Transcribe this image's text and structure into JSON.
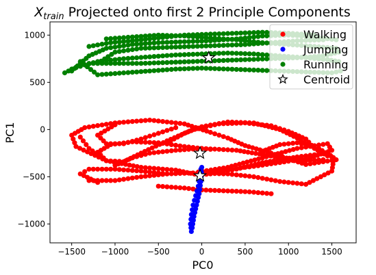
{
  "chart_data": {
    "type": "scatter",
    "title": {
      "base": "X",
      "subscript": "train",
      "rest": " Projected onto first 2 Principle Components"
    },
    "xlabel": "PC0",
    "ylabel": "PC1",
    "xlim": [
      -1750,
      1780
    ],
    "ylim": [
      -1200,
      1140
    ],
    "xticks": [
      -1500,
      -1000,
      -500,
      0,
      500,
      1000,
      1500
    ],
    "yticks": [
      -1000,
      -500,
      0,
      500,
      1000
    ],
    "legend_position": "upper right",
    "series": [
      {
        "name": "Walking",
        "color": "#ff0000",
        "curves": [
          [
            [
              -40,
              -480
            ],
            [
              -300,
              -430
            ],
            [
              -700,
              -400
            ],
            [
              -1100,
              -330
            ],
            [
              -1450,
              -180
            ],
            [
              -1500,
              -60
            ],
            [
              -1350,
              20
            ],
            [
              -1000,
              70
            ],
            [
              -600,
              100
            ],
            [
              -200,
              60
            ],
            [
              100,
              -30
            ],
            [
              300,
              -90
            ],
            [
              500,
              -170
            ],
            [
              800,
              -250
            ],
            [
              1200,
              -370
            ],
            [
              1550,
              -320
            ],
            [
              1450,
              -250
            ],
            [
              1100,
              -290
            ],
            [
              700,
              -350
            ],
            [
              400,
              -420
            ],
            [
              100,
              -470
            ],
            [
              -40,
              -480
            ]
          ],
          [
            [
              -40,
              -450
            ],
            [
              300,
              -400
            ],
            [
              700,
              -300
            ],
            [
              1100,
              -200
            ],
            [
              1450,
              -150
            ],
            [
              1500,
              -220
            ],
            [
              1250,
              -300
            ],
            [
              900,
              -350
            ],
            [
              600,
              -390
            ],
            [
              300,
              -420
            ],
            [
              100,
              -440
            ]
          ],
          [
            [
              -1400,
              -80
            ],
            [
              -1300,
              -200
            ],
            [
              -1100,
              -330
            ],
            [
              -900,
              -340
            ],
            [
              -700,
              -250
            ],
            [
              -400,
              -120
            ],
            [
              -100,
              0
            ],
            [
              200,
              60
            ],
            [
              500,
              70
            ],
            [
              800,
              40
            ],
            [
              1000,
              -20
            ],
            [
              1200,
              -100
            ],
            [
              1300,
              -200
            ]
          ],
          [
            [
              -1000,
              -380
            ],
            [
              -800,
              -300
            ],
            [
              -600,
              -250
            ],
            [
              -300,
              -220
            ],
            [
              0,
              -200
            ],
            [
              400,
              -220
            ],
            [
              800,
              -280
            ],
            [
              1200,
              -330
            ],
            [
              1400,
              -320
            ]
          ],
          [
            [
              -1100,
              -330
            ],
            [
              -1200,
              -240
            ],
            [
              -1050,
              -160
            ],
            [
              -800,
              -130
            ],
            [
              -500,
              -140
            ],
            [
              -200,
              -180
            ],
            [
              100,
              -210
            ]
          ],
          [
            [
              -1300,
              -540
            ],
            [
              -1000,
              -540
            ],
            [
              -700,
              -500
            ],
            [
              -400,
              -470
            ],
            [
              -100,
              -460
            ],
            [
              300,
              -470
            ],
            [
              600,
              -500
            ],
            [
              900,
              -550
            ],
            [
              1200,
              -580
            ],
            [
              1500,
              -440
            ],
            [
              1520,
              -330
            ]
          ],
          [
            [
              -400,
              -140
            ],
            [
              -200,
              -40
            ],
            [
              0,
              30
            ],
            [
              300,
              80
            ],
            [
              600,
              70
            ],
            [
              900,
              0
            ],
            [
              1100,
              -90
            ],
            [
              1300,
              -200
            ],
            [
              1450,
              -280
            ]
          ],
          [
            [
              -500,
              -600
            ],
            [
              -200,
              -620
            ],
            [
              0,
              -640
            ],
            [
              300,
              -650
            ],
            [
              550,
              -660
            ],
            [
              800,
              -680
            ]
          ],
          [
            [
              -1200,
              -560
            ],
            [
              -1400,
              -470
            ],
            [
              -1300,
              -420
            ],
            [
              -1000,
              -420
            ],
            [
              -700,
              -440
            ],
            [
              -400,
              -470
            ]
          ],
          [
            [
              -1000,
              50
            ],
            [
              -1200,
              -60
            ],
            [
              -1100,
              -150
            ],
            [
              -900,
              -150
            ],
            [
              -700,
              -100
            ],
            [
              -500,
              -40
            ],
            [
              -300,
              20
            ]
          ],
          [
            [
              700,
              -230
            ],
            [
              900,
              -160
            ],
            [
              1100,
              -140
            ],
            [
              1350,
              -200
            ],
            [
              1500,
              -290
            ]
          ]
        ]
      },
      {
        "name": "Jumping",
        "color": "#0000ff",
        "curves": [
          [
            [
              -10,
              -420
            ],
            [
              -20,
              -500
            ],
            [
              -40,
              -600
            ],
            [
              -70,
              -700
            ],
            [
              -100,
              -800
            ],
            [
              -120,
              -900
            ],
            [
              -130,
              -1000
            ],
            [
              -120,
              -1080
            ]
          ],
          [
            [
              0,
              -400
            ],
            [
              -10,
              -550
            ],
            [
              -30,
              -680
            ],
            [
              -60,
              -800
            ],
            [
              -90,
              -920
            ],
            [
              -110,
              -1040
            ]
          ]
        ]
      },
      {
        "name": "Running",
        "color": "#008000",
        "curves": [
          [
            [
              -1580,
              600
            ],
            [
              -1450,
              660
            ],
            [
              -1200,
              720
            ],
            [
              -900,
              750
            ],
            [
              -600,
              770
            ],
            [
              -300,
              790
            ],
            [
              0,
              800
            ],
            [
              300,
              810
            ],
            [
              600,
              800
            ],
            [
              900,
              780
            ],
            [
              1200,
              760
            ],
            [
              1450,
              740
            ],
            [
              1580,
              720
            ]
          ],
          [
            [
              -1500,
              620
            ],
            [
              -1300,
              780
            ],
            [
              -1100,
              860
            ],
            [
              -800,
              900
            ],
            [
              -500,
              920
            ],
            [
              -200,
              930
            ],
            [
              100,
              940
            ],
            [
              400,
              960
            ],
            [
              700,
              990
            ],
            [
              1000,
              1000
            ],
            [
              1300,
              980
            ],
            [
              1550,
              950
            ]
          ],
          [
            [
              -1400,
              720
            ],
            [
              -1200,
              580
            ],
            [
              -900,
              600
            ],
            [
              -600,
              620
            ],
            [
              -300,
              640
            ],
            [
              0,
              650
            ],
            [
              300,
              640
            ],
            [
              600,
              630
            ],
            [
              900,
              620
            ],
            [
              1200,
              610
            ],
            [
              1500,
              600
            ],
            [
              1600,
              620
            ]
          ],
          [
            [
              -1200,
              700
            ],
            [
              -1000,
              820
            ],
            [
              -700,
              860
            ],
            [
              -400,
              870
            ],
            [
              -100,
              880
            ],
            [
              200,
              890
            ],
            [
              500,
              900
            ],
            [
              800,
              920
            ],
            [
              1100,
              940
            ],
            [
              1400,
              950
            ]
          ],
          [
            [
              -1100,
              960
            ],
            [
              -800,
              980
            ],
            [
              -500,
              1000
            ],
            [
              -200,
              990
            ],
            [
              100,
              970
            ],
            [
              400,
              950
            ],
            [
              700,
              920
            ],
            [
              1000,
              900
            ],
            [
              1300,
              880
            ],
            [
              1550,
              860
            ]
          ],
          [
            [
              -1500,
              640
            ],
            [
              -1300,
              700
            ],
            [
              -1000,
              700
            ],
            [
              -700,
              700
            ],
            [
              -400,
              710
            ],
            [
              -100,
              720
            ],
            [
              200,
              730
            ],
            [
              500,
              740
            ],
            [
              800,
              750
            ],
            [
              1100,
              760
            ],
            [
              1400,
              780
            ],
            [
              1580,
              820
            ]
          ],
          [
            [
              -1300,
              880
            ],
            [
              -1050,
              920
            ],
            [
              -800,
              940
            ],
            [
              -500,
              970
            ],
            [
              -200,
              1000
            ],
            [
              100,
              1010
            ],
            [
              400,
              1020
            ],
            [
              700,
              1030
            ],
            [
              1000,
              1020
            ],
            [
              1300,
              1000
            ]
          ]
        ]
      },
      {
        "name": "Centroid",
        "marker": "star",
        "points": [
          [
            80,
            760
          ],
          [
            -20,
            -250
          ],
          [
            -20,
            -490
          ]
        ]
      }
    ]
  }
}
